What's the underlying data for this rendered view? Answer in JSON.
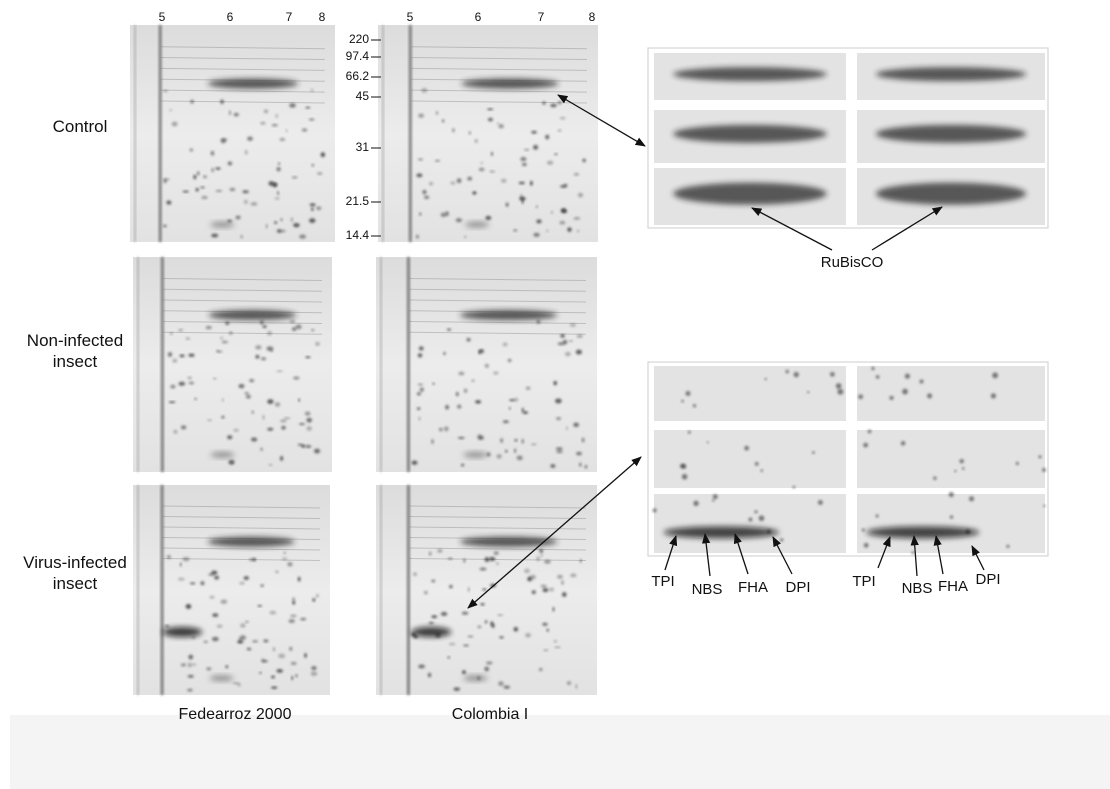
{
  "row_labels": [
    "Control",
    "Non-infected insect",
    "Virus-infected insect"
  ],
  "column_labels": [
    "Fedearroz 2000",
    "Colombia I"
  ],
  "ph_ticks": {
    "left_gel": [
      "5",
      "6",
      "7",
      "8"
    ],
    "right_gel": [
      "5",
      "6",
      "7",
      "8"
    ]
  },
  "mw_markers": [
    "220",
    "97.4",
    "66.2",
    "45",
    "31",
    "21.5",
    "14.4"
  ],
  "rubisco_inset": {
    "label": "RuBisCO"
  },
  "spot_inset": {
    "left_labels": [
      "TPI",
      "NBS",
      "FHA",
      "DPI"
    ],
    "right_labels": [
      "TPI",
      "NBS",
      "FHA",
      "DPI"
    ]
  }
}
